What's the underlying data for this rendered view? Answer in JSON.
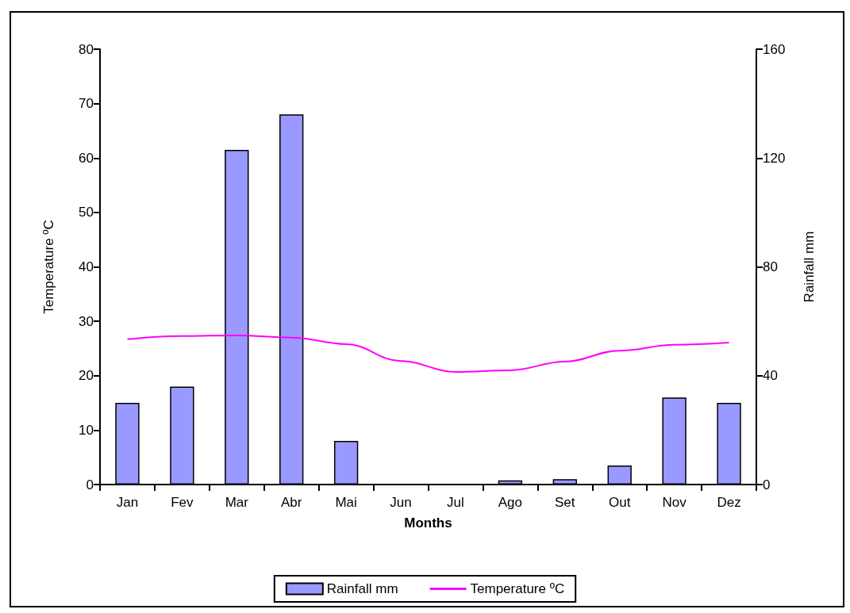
{
  "chart_data": {
    "type": "bar",
    "xlabel": "Months",
    "ylabel": "Temperature ºC",
    "y2label": "Rainfall mm",
    "categories": [
      "Jan",
      "Fev",
      "Mar",
      "Abr",
      "Mai",
      "Jun",
      "Jul",
      "Ago",
      "Set",
      "Out",
      "Nov",
      "Dez"
    ],
    "series": [
      {
        "name": "Rainfall mm",
        "axis": "y2",
        "color": "#9999ff",
        "values": [
          30,
          36,
          123,
          136,
          16,
          0,
          0,
          1.5,
          2,
          7,
          32,
          30
        ]
      },
      {
        "name": "Temperature ºC",
        "type": "line",
        "axis": "y",
        "color": "#ff00ff",
        "marker": "none",
        "values": [
          26.7,
          27.3,
          27.4,
          27.0,
          25.8,
          22.7,
          20.7,
          21.0,
          22.6,
          24.6,
          25.7,
          26.1
        ]
      }
    ],
    "ylim": [
      0,
      80
    ],
    "yticks": [
      0,
      10,
      20,
      30,
      40,
      50,
      60,
      70,
      80
    ],
    "y2lim": [
      0,
      160
    ],
    "y2ticks": [
      0,
      40,
      80,
      120,
      160
    ],
    "grid": false,
    "legend": "bottom"
  }
}
